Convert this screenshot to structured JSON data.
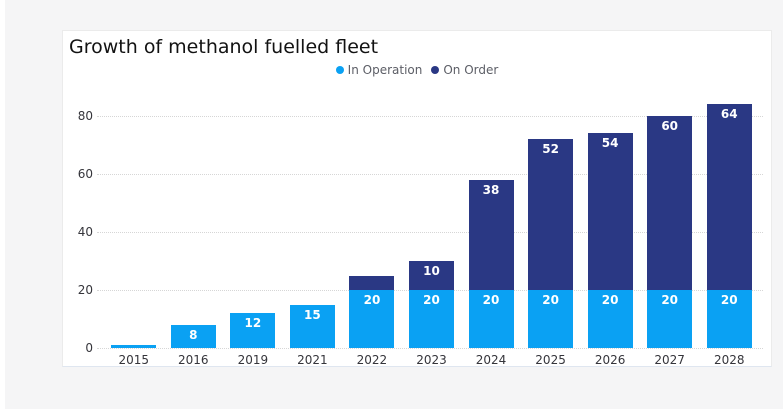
{
  "colors": {
    "page_bg": "#f5f5f6",
    "card_bg": "#ffffff",
    "grid": "#d6d6d6",
    "axis_text": "#35353b",
    "legend_text": "#5c5e66",
    "title_text": "#121212",
    "data_label_text": "#ffffff",
    "in_operation": "#0aa1f3",
    "on_order": "#2a3884"
  },
  "chart_data": {
    "type": "bar",
    "stacked": true,
    "title": "Growth of methanol fuelled fleet",
    "categories": [
      "2015",
      "2016",
      "2019",
      "2021",
      "2022",
      "2023",
      "2024",
      "2025",
      "2026",
      "2027",
      "2028"
    ],
    "series": [
      {
        "name": "In Operation",
        "color": "#0aa1f3",
        "values": [
          1,
          8,
          12,
          15,
          20,
          20,
          20,
          20,
          20,
          20,
          20
        ]
      },
      {
        "name": "On Order",
        "color": "#2a3884",
        "values": [
          0,
          0,
          0,
          0,
          5,
          10,
          38,
          52,
          54,
          60,
          64
        ]
      }
    ],
    "totals": [
      1,
      8,
      12,
      15,
      25,
      30,
      58,
      72,
      74,
      80,
      84
    ],
    "yticks": [
      0,
      20,
      40,
      60,
      80
    ],
    "ylim": [
      0,
      88
    ],
    "xlabel": "",
    "ylabel": "",
    "grid": "horizontal-dotted",
    "legend_position": "top-center",
    "data_labels": "white bold inside segment top; hidden when segment too small"
  }
}
